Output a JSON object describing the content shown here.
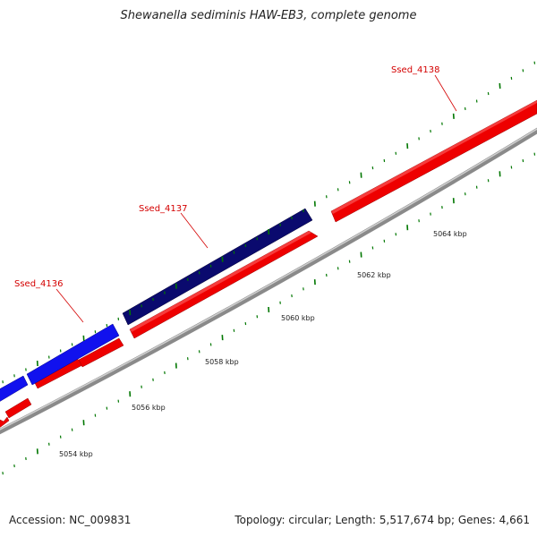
{
  "title": "Shewanella sediminis HAW-EB3, complete genome",
  "footer": {
    "accession": "Accession: NC_009831",
    "stats": "Topology: circular; Length: 5,517,674 bp; Genes: 4,661"
  },
  "colors": {
    "forward_gene_a": "#0000dd",
    "forward_gene_b": "#000066",
    "reverse_gene": "#ee0000",
    "backbone": "#888888",
    "ticks": "#007700",
    "gene_label": "#d40000"
  },
  "scale_labels": [
    "5054 kbp",
    "5056 kbp",
    "5058 kbp",
    "5060 kbp",
    "5062 kbp",
    "5064 kbp"
  ],
  "gene_labels": [
    "Ssed_4136",
    "Ssed_4137",
    "Ssed_4138"
  ]
}
